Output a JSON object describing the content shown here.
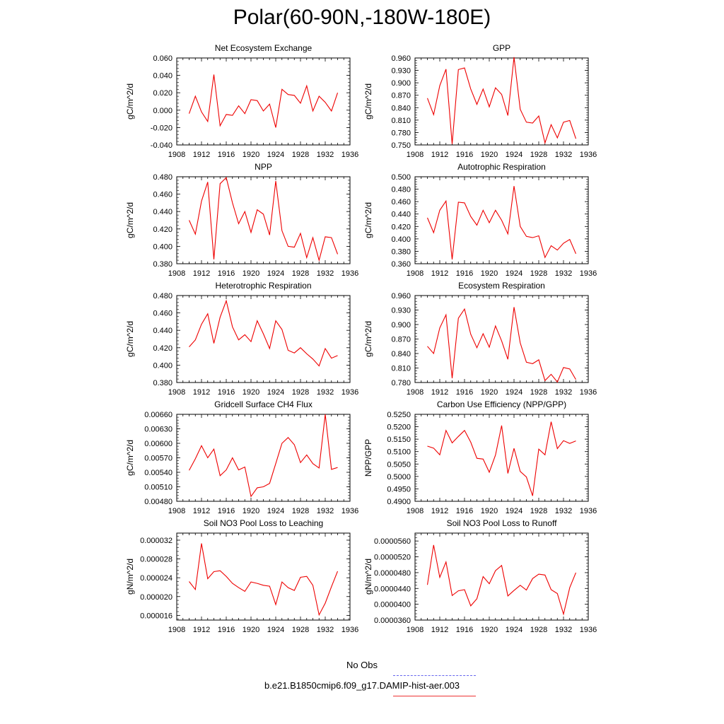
{
  "title": "Polar(60-90N,-180W-180E)",
  "legend": {
    "obs_label": "No Obs",
    "obs_color": "#6666ee",
    "model_label": "b.e21.B1850cmip6.f09_g17.DAMIP-hist-aer.003",
    "model_color": "#ee3333"
  },
  "chart_data": [
    {
      "type": "line",
      "title": "Net Ecosystem Exchange",
      "ylabel": "gC/m^2/d",
      "xlim": [
        1908,
        1936
      ],
      "ylim": [
        -0.04,
        0.06
      ],
      "xticks": [
        "1908",
        "1912",
        "1916",
        "1920",
        "1924",
        "1928",
        "1932",
        "1936"
      ],
      "yticks": [
        "-0.040",
        "-0.020",
        "0.000",
        "0.020",
        "0.040",
        "0.060"
      ],
      "x": [
        1910,
        1911,
        1912,
        1913,
        1914,
        1915,
        1916,
        1917,
        1918,
        1919,
        1920,
        1921,
        1922,
        1923,
        1924,
        1925,
        1926,
        1927,
        1928,
        1929,
        1930,
        1931,
        1932,
        1933,
        1934
      ],
      "series": [
        {
          "color": "#ee0000",
          "values": [
            -0.004,
            0.016,
            -0.002,
            -0.013,
            0.041,
            -0.018,
            -0.005,
            -0.006,
            0.005,
            -0.004,
            0.012,
            0.011,
            -0.001,
            0.007,
            -0.02,
            0.024,
            0.018,
            0.017,
            0.008,
            0.028,
            -0.001,
            0.016,
            0.009,
            -0.001,
            0.02
          ]
        }
      ]
    },
    {
      "type": "line",
      "title": "GPP",
      "ylabel": "gC/m^2/d",
      "xlim": [
        1908,
        1936
      ],
      "ylim": [
        0.75,
        0.96
      ],
      "xticks": [
        "1908",
        "1912",
        "1916",
        "1920",
        "1924",
        "1928",
        "1932",
        "1936"
      ],
      "yticks": [
        "0.750",
        "0.780",
        "0.810",
        "0.840",
        "0.870",
        "0.900",
        "0.930",
        "0.960"
      ],
      "x": [
        1910,
        1911,
        1912,
        1913,
        1914,
        1915,
        1916,
        1917,
        1918,
        1919,
        1920,
        1921,
        1922,
        1923,
        1924,
        1925,
        1926,
        1927,
        1928,
        1929,
        1930,
        1931,
        1932,
        1933,
        1934
      ],
      "series": [
        {
          "color": "#ee0000",
          "values": [
            0.863,
            0.823,
            0.893,
            0.933,
            0.752,
            0.932,
            0.936,
            0.885,
            0.848,
            0.885,
            0.842,
            0.888,
            0.872,
            0.821,
            0.962,
            0.836,
            0.805,
            0.803,
            0.82,
            0.755,
            0.799,
            0.767,
            0.805,
            0.809,
            0.765
          ]
        }
      ]
    },
    {
      "type": "line",
      "title": "NPP",
      "ylabel": "gC/m^2/d",
      "xlim": [
        1908,
        1936
      ],
      "ylim": [
        0.38,
        0.48
      ],
      "xticks": [
        "1908",
        "1912",
        "1916",
        "1920",
        "1924",
        "1928",
        "1932",
        "1936"
      ],
      "yticks": [
        "0.380",
        "0.400",
        "0.420",
        "0.440",
        "0.460",
        "0.480"
      ],
      "x": [
        1910,
        1911,
        1912,
        1913,
        1914,
        1915,
        1916,
        1917,
        1918,
        1919,
        1920,
        1921,
        1922,
        1923,
        1924,
        1925,
        1926,
        1927,
        1928,
        1929,
        1930,
        1931,
        1932,
        1933,
        1934
      ],
      "series": [
        {
          "color": "#ee0000",
          "values": [
            0.43,
            0.414,
            0.452,
            0.474,
            0.385,
            0.472,
            0.479,
            0.45,
            0.426,
            0.44,
            0.416,
            0.442,
            0.437,
            0.413,
            0.475,
            0.418,
            0.4,
            0.399,
            0.415,
            0.387,
            0.41,
            0.384,
            0.411,
            0.41,
            0.391
          ]
        }
      ]
    },
    {
      "type": "line",
      "title": "Autotrophic Respiration",
      "ylabel": "gC/m^2/d",
      "xlim": [
        1908,
        1936
      ],
      "ylim": [
        0.36,
        0.5
      ],
      "xticks": [
        "1908",
        "1912",
        "1916",
        "1920",
        "1924",
        "1928",
        "1932",
        "1936"
      ],
      "yticks": [
        "0.360",
        "0.380",
        "0.400",
        "0.420",
        "0.440",
        "0.460",
        "0.480",
        "0.500"
      ],
      "x": [
        1910,
        1911,
        1912,
        1913,
        1914,
        1915,
        1916,
        1917,
        1918,
        1919,
        1920,
        1921,
        1922,
        1923,
        1924,
        1925,
        1926,
        1927,
        1928,
        1929,
        1930,
        1931,
        1932,
        1933,
        1934
      ],
      "series": [
        {
          "color": "#ee0000",
          "values": [
            0.434,
            0.41,
            0.446,
            0.461,
            0.367,
            0.459,
            0.458,
            0.436,
            0.422,
            0.446,
            0.426,
            0.446,
            0.43,
            0.408,
            0.485,
            0.42,
            0.404,
            0.402,
            0.405,
            0.37,
            0.389,
            0.382,
            0.393,
            0.399,
            0.376
          ]
        }
      ]
    },
    {
      "type": "line",
      "title": "Heterotrophic Respiration",
      "ylabel": "gC/m^2/d",
      "xlim": [
        1908,
        1936
      ],
      "ylim": [
        0.38,
        0.48
      ],
      "xticks": [
        "1908",
        "1912",
        "1916",
        "1920",
        "1924",
        "1928",
        "1932",
        "1936"
      ],
      "yticks": [
        "0.380",
        "0.400",
        "0.420",
        "0.440",
        "0.460",
        "0.480"
      ],
      "x": [
        1910,
        1911,
        1912,
        1913,
        1914,
        1915,
        1916,
        1917,
        1918,
        1919,
        1920,
        1921,
        1922,
        1923,
        1924,
        1925,
        1926,
        1927,
        1928,
        1929,
        1930,
        1931,
        1932,
        1933,
        1934
      ],
      "series": [
        {
          "color": "#ee0000",
          "values": [
            0.421,
            0.429,
            0.447,
            0.459,
            0.425,
            0.455,
            0.474,
            0.444,
            0.429,
            0.435,
            0.427,
            0.451,
            0.436,
            0.419,
            0.451,
            0.441,
            0.417,
            0.414,
            0.42,
            0.413,
            0.407,
            0.399,
            0.419,
            0.408,
            0.411
          ]
        }
      ]
    },
    {
      "type": "line",
      "title": "Ecosystem Respiration",
      "ylabel": "gC/m^2/d",
      "xlim": [
        1908,
        1936
      ],
      "ylim": [
        0.78,
        0.96
      ],
      "xticks": [
        "1908",
        "1912",
        "1916",
        "1920",
        "1924",
        "1928",
        "1932",
        "1936"
      ],
      "yticks": [
        "0.780",
        "0.810",
        "0.840",
        "0.870",
        "0.900",
        "0.930",
        "0.960"
      ],
      "x": [
        1910,
        1911,
        1912,
        1913,
        1914,
        1915,
        1916,
        1917,
        1918,
        1919,
        1920,
        1921,
        1922,
        1923,
        1924,
        1925,
        1926,
        1927,
        1928,
        1929,
        1930,
        1931,
        1932,
        1933,
        1934
      ],
      "series": [
        {
          "color": "#ee0000",
          "values": [
            0.855,
            0.84,
            0.893,
            0.92,
            0.789,
            0.913,
            0.932,
            0.88,
            0.852,
            0.881,
            0.853,
            0.897,
            0.866,
            0.828,
            0.936,
            0.862,
            0.822,
            0.819,
            0.827,
            0.784,
            0.797,
            0.781,
            0.811,
            0.808,
            0.786
          ]
        }
      ]
    },
    {
      "type": "line",
      "title": "Gridcell Surface CH4 Flux",
      "ylabel": "gC/m^2/d",
      "xlim": [
        1908,
        1936
      ],
      "ylim": [
        0.0048,
        0.0066
      ],
      "xticks": [
        "1908",
        "1912",
        "1916",
        "1920",
        "1924",
        "1928",
        "1932",
        "1936"
      ],
      "yticks": [
        "0.00480",
        "0.00510",
        "0.00540",
        "0.00570",
        "0.00600",
        "0.00630",
        "0.00660"
      ],
      "x": [
        1910,
        1911,
        1912,
        1913,
        1914,
        1915,
        1916,
        1917,
        1918,
        1919,
        1920,
        1921,
        1922,
        1923,
        1924,
        1925,
        1926,
        1927,
        1928,
        1929,
        1930,
        1931,
        1932,
        1933,
        1934
      ],
      "series": [
        {
          "color": "#ee0000",
          "values": [
            0.00544,
            0.00568,
            0.00595,
            0.0057,
            0.00588,
            0.00533,
            0.00545,
            0.0057,
            0.00545,
            0.00551,
            0.0049,
            0.00508,
            0.0051,
            0.00517,
            0.00558,
            0.006,
            0.00612,
            0.00597,
            0.0056,
            0.00576,
            0.00558,
            0.00549,
            0.0066,
            0.00546,
            0.0055
          ]
        }
      ]
    },
    {
      "type": "line",
      "title": "Carbon Use Efficiency (NPP/GPP)",
      "ylabel": "NPP/GPP",
      "xlim": [
        1908,
        1936
      ],
      "ylim": [
        0.49,
        0.525
      ],
      "xticks": [
        "1908",
        "1912",
        "1916",
        "1920",
        "1924",
        "1928",
        "1932",
        "1936"
      ],
      "yticks": [
        "0.4900",
        "0.4950",
        "0.5000",
        "0.5050",
        "0.5100",
        "0.5150",
        "0.5200",
        "0.5250"
      ],
      "x": [
        1910,
        1911,
        1912,
        1913,
        1914,
        1915,
        1916,
        1917,
        1918,
        1919,
        1920,
        1921,
        1922,
        1923,
        1924,
        1925,
        1926,
        1927,
        1928,
        1929,
        1930,
        1931,
        1932,
        1933,
        1934
      ],
      "series": [
        {
          "color": "#ee0000",
          "values": [
            0.5122,
            0.5114,
            0.5087,
            0.5185,
            0.5135,
            0.5161,
            0.5185,
            0.5138,
            0.5073,
            0.507,
            0.5017,
            0.5086,
            0.5205,
            0.5012,
            0.5113,
            0.502,
            0.4998,
            0.4922,
            0.511,
            0.5087,
            0.522,
            0.5112,
            0.5144,
            0.5133,
            0.5143
          ]
        }
      ]
    },
    {
      "type": "line",
      "title": "Soil NO3 Pool Loss to Leaching",
      "ylabel": "gN/m^2/d",
      "xlim": [
        1908,
        1936
      ],
      "ylim": [
        1.5e-05,
        3.35e-05
      ],
      "xticks": [
        "1908",
        "1912",
        "1916",
        "1920",
        "1924",
        "1928",
        "1932",
        "1936"
      ],
      "yticks": [
        "0.000016",
        "0.000020",
        "0.000024",
        "0.000028",
        "0.000032"
      ],
      "x": [
        1910,
        1911,
        1912,
        1913,
        1914,
        1915,
        1916,
        1917,
        1918,
        1919,
        1920,
        1921,
        1922,
        1923,
        1924,
        1925,
        1926,
        1927,
        1928,
        1929,
        1930,
        1931,
        1932,
        1933,
        1934
      ],
      "series": [
        {
          "color": "#ee0000",
          "values": [
            2.32e-05,
            2.15e-05,
            3.13e-05,
            2.38e-05,
            2.53e-05,
            2.55e-05,
            2.43e-05,
            2.28e-05,
            2.19e-05,
            2.11e-05,
            2.31e-05,
            2.28e-05,
            2.24e-05,
            2.22e-05,
            1.83e-05,
            2.31e-05,
            2.19e-05,
            2.13e-05,
            2.41e-05,
            2.43e-05,
            2.24e-05,
            1.61e-05,
            1.86e-05,
            2.21e-05,
            2.54e-05
          ]
        }
      ]
    },
    {
      "type": "line",
      "title": "Soil NO3 Pool Loss to Runoff",
      "ylabel": "gN/m^2/d",
      "xlim": [
        1908,
        1936
      ],
      "ylim": [
        3.6e-05,
        5.8e-05
      ],
      "xticks": [
        "1908",
        "1912",
        "1916",
        "1920",
        "1924",
        "1928",
        "1932",
        "1936"
      ],
      "yticks": [
        "0.0000360",
        "0.0000400",
        "0.0000440",
        "0.0000480",
        "0.0000520",
        "0.0000560"
      ],
      "x": [
        1910,
        1911,
        1912,
        1913,
        1914,
        1915,
        1916,
        1917,
        1918,
        1919,
        1920,
        1921,
        1922,
        1923,
        1924,
        1925,
        1926,
        1927,
        1928,
        1929,
        1930,
        1931,
        1932,
        1933,
        1934
      ],
      "series": [
        {
          "color": "#ee0000",
          "values": [
            4.49e-05,
            5.5e-05,
            4.68e-05,
            5.07e-05,
            4.22e-05,
            4.34e-05,
            4.37e-05,
            3.96e-05,
            4.14e-05,
            4.7e-05,
            4.52e-05,
            4.85e-05,
            4.98e-05,
            4.21e-05,
            4.35e-05,
            4.48e-05,
            4.36e-05,
            4.65e-05,
            4.76e-05,
            4.74e-05,
            4.37e-05,
            4.27e-05,
            3.75e-05,
            4.42e-05,
            4.8e-05
          ]
        }
      ]
    }
  ]
}
